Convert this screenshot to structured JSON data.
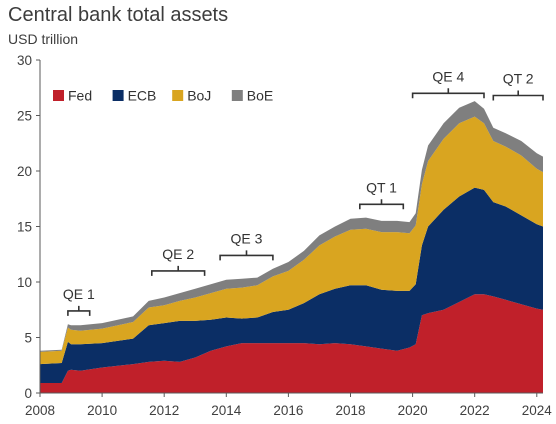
{
  "chart_data": {
    "type": "area",
    "stacked": true,
    "title": "Central bank total assets",
    "unit": "USD trillion",
    "xlim": [
      2008,
      2024.2
    ],
    "ylim": [
      0,
      30
    ],
    "x_ticks": [
      2008,
      2010,
      2012,
      2014,
      2016,
      2018,
      2020,
      2022,
      2024
    ],
    "y_ticks": [
      0,
      5,
      10,
      15,
      20,
      25,
      30
    ],
    "grid": false,
    "legend_position": "top-left",
    "x": [
      2008.0,
      2008.7,
      2008.9,
      2009.0,
      2009.3,
      2010.0,
      2011.0,
      2011.5,
      2012.0,
      2012.5,
      2013.0,
      2013.5,
      2014.0,
      2014.5,
      2015.0,
      2015.5,
      2016.0,
      2016.5,
      2017.0,
      2017.5,
      2018.0,
      2018.5,
      2019.0,
      2019.5,
      2019.9,
      2020.1,
      2020.3,
      2020.5,
      2021.0,
      2021.5,
      2022.0,
      2022.3,
      2022.6,
      2023.0,
      2023.5,
      2024.0,
      2024.2
    ],
    "series": [
      {
        "name": "Fed",
        "color": "#c0202a",
        "values": [
          0.9,
          0.9,
          2.0,
          2.1,
          2.0,
          2.3,
          2.6,
          2.8,
          2.9,
          2.8,
          3.2,
          3.8,
          4.2,
          4.5,
          4.5,
          4.5,
          4.5,
          4.5,
          4.4,
          4.5,
          4.4,
          4.2,
          4.0,
          3.8,
          4.1,
          4.4,
          7.0,
          7.2,
          7.5,
          8.2,
          8.9,
          8.9,
          8.7,
          8.4,
          8.0,
          7.6,
          7.5
        ]
      },
      {
        "name": "ECB",
        "color": "#0b2e65",
        "values": [
          1.7,
          1.8,
          2.6,
          2.3,
          2.4,
          2.2,
          2.3,
          3.3,
          3.4,
          3.7,
          3.3,
          2.8,
          2.6,
          2.2,
          2.3,
          2.8,
          3.0,
          3.6,
          4.5,
          4.9,
          5.3,
          5.5,
          5.3,
          5.4,
          5.1,
          5.4,
          6.3,
          7.8,
          9.0,
          9.5,
          9.6,
          9.4,
          8.5,
          8.4,
          8.0,
          7.6,
          7.5
        ]
      },
      {
        "name": "BoJ",
        "color": "#d9a520",
        "values": [
          1.1,
          1.1,
          1.3,
          1.3,
          1.2,
          1.3,
          1.5,
          1.6,
          1.6,
          1.8,
          2.1,
          2.4,
          2.6,
          2.8,
          2.9,
          3.2,
          3.5,
          3.9,
          4.4,
          4.7,
          5.0,
          5.1,
          5.2,
          5.3,
          5.2,
          5.3,
          5.5,
          5.9,
          6.4,
          6.6,
          6.4,
          6.0,
          5.5,
          5.4,
          5.4,
          5.0,
          4.9
        ]
      },
      {
        "name": "BoE",
        "color": "#7f7f7f",
        "values": [
          0.1,
          0.1,
          0.3,
          0.4,
          0.5,
          0.5,
          0.5,
          0.6,
          0.7,
          0.7,
          0.8,
          0.8,
          0.8,
          0.8,
          0.7,
          0.7,
          0.8,
          0.8,
          0.9,
          0.9,
          1.0,
          1.0,
          1.0,
          1.0,
          1.0,
          1.1,
          1.3,
          1.4,
          1.4,
          1.4,
          1.4,
          1.3,
          1.2,
          1.2,
          1.3,
          1.4,
          1.4
        ]
      }
    ],
    "annotations": [
      {
        "label": "QE 1",
        "x_start": 2008.9,
        "x_end": 2009.6
      },
      {
        "label": "QE 2",
        "x_start": 2011.6,
        "x_end": 2013.3
      },
      {
        "label": "QE 3",
        "x_start": 2013.8,
        "x_end": 2015.5
      },
      {
        "label": "QT 1",
        "x_start": 2018.3,
        "x_end": 2019.7
      },
      {
        "label": "QE 4",
        "x_start": 2020.0,
        "x_end": 2022.3
      },
      {
        "label": "QT 2",
        "x_start": 2022.6,
        "x_end": 2024.2
      }
    ]
  }
}
